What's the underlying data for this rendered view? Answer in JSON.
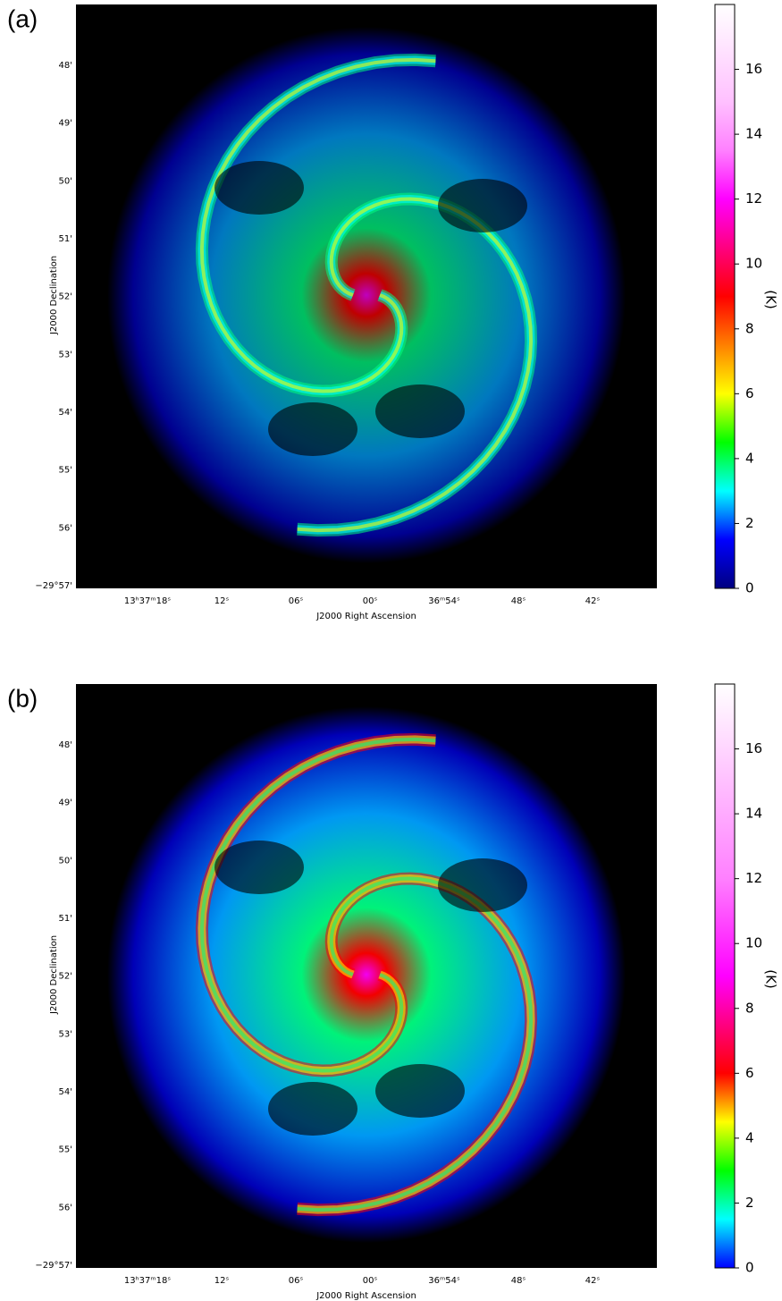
{
  "figure": {
    "panels": [
      {
        "label": "(a)",
        "y_label": "J2000 Declination",
        "x_label": "J2000 Right Ascension",
        "y_ticks": [
          "48'",
          "49'",
          "50'",
          "51'",
          "52'",
          "53'",
          "54'",
          "55'",
          "56'",
          "−29°57'"
        ],
        "x_ticks": [
          "13ʰ37ᵐ18ˢ",
          "12ˢ",
          "06ˢ",
          "00ˢ",
          "36ᵐ54ˢ",
          "48ˢ",
          "42ˢ"
        ],
        "colorbar": {
          "label": "(K)",
          "lim": [
            0,
            18
          ],
          "ticks": [
            0,
            2,
            4,
            6,
            8,
            10,
            12,
            14,
            16
          ],
          "colormap": [
            "#000080",
            "#0000ff",
            "#00ffff",
            "#00ff00",
            "#ffff00",
            "#ff8000",
            "#ff0000",
            "#ff0080",
            "#ff00ff",
            "#ff80ff",
            "#ffc0ff",
            "#ffe0ff",
            "#ffffff"
          ]
        }
      },
      {
        "label": "(b)",
        "y_label": "J2000 Declination",
        "x_label": "J2000 Right Ascension",
        "y_ticks": [
          "48'",
          "49'",
          "50'",
          "51'",
          "52'",
          "53'",
          "54'",
          "55'",
          "56'",
          "−29°57'"
        ],
        "x_ticks": [
          "13ʰ37ᵐ18ˢ",
          "12ˢ",
          "06ˢ",
          "00ˢ",
          "36ᵐ54ˢ",
          "48ˢ",
          "42ˢ"
        ],
        "colorbar": {
          "label": "(K)",
          "lim": [
            0,
            18
          ],
          "ticks": [
            0,
            2,
            4,
            6,
            8,
            10,
            12,
            14,
            16
          ],
          "colormap": [
            "#0000ff",
            "#00ffff",
            "#00ff00",
            "#ffff00",
            "#ff0000",
            "#ff0080",
            "#ff00ff",
            "#ff40ff",
            "#ff80ff",
            "#ffa0ff",
            "#ffc0ff",
            "#ffe0ff",
            "#ffffff"
          ]
        }
      }
    ]
  }
}
